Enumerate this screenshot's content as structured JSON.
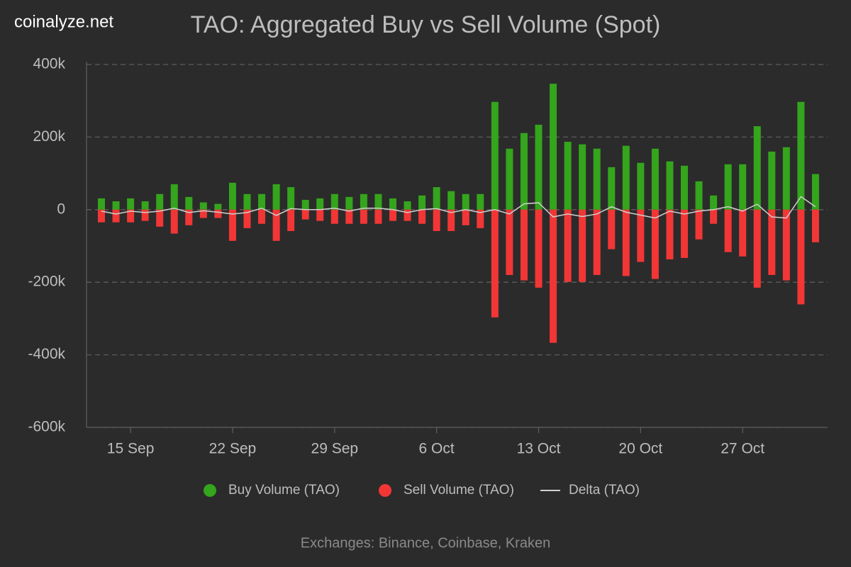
{
  "chart_data": {
    "type": "bar",
    "title": "TAO: Aggregated Buy vs Sell Volume (Spot)",
    "watermark": "coinalyze.net",
    "footer": "Exchanges: Binance, Coinbase, Kraken",
    "categories": [
      null,
      null,
      "15 Sep",
      null,
      null,
      null,
      null,
      null,
      null,
      "22 Sep",
      null,
      null,
      null,
      null,
      null,
      null,
      "29 Sep",
      null,
      null,
      null,
      null,
      null,
      null,
      "6 Oct",
      null,
      null,
      null,
      null,
      null,
      null,
      "13 Oct",
      null,
      null,
      null,
      null,
      null,
      null,
      "20 Oct",
      null,
      null,
      null,
      null,
      null,
      null,
      "27 Oct",
      null,
      null,
      null,
      null,
      null
    ],
    "series": [
      {
        "name": "Buy Volume (TAO)",
        "color": "#34a51c",
        "kind": "bar",
        "values": [
          31000,
          23000,
          31000,
          23000,
          43000,
          70000,
          35000,
          20000,
          16000,
          74000,
          43000,
          43000,
          70000,
          62000,
          27000,
          31000,
          43000,
          35000,
          43000,
          43000,
          31000,
          23000,
          39000,
          62000,
          51000,
          43000,
          43000,
          297000,
          168000,
          211000,
          234000,
          347000,
          187000,
          180000,
          168000,
          117000,
          176000,
          129000,
          168000,
          133000,
          121000,
          78000,
          39000,
          125000,
          125000,
          230000,
          160000,
          172000,
          297000,
          98000
        ]
      },
      {
        "name": "Sell Volume (TAO)",
        "color": "#f23636",
        "kind": "bar",
        "values": [
          -35000,
          -35000,
          -35000,
          -31000,
          -47000,
          -66000,
          -43000,
          -23000,
          -23000,
          -86000,
          -51000,
          -39000,
          -86000,
          -59000,
          -27000,
          -31000,
          -39000,
          -39000,
          -39000,
          -39000,
          -31000,
          -31000,
          -39000,
          -59000,
          -59000,
          -43000,
          -51000,
          -297000,
          -180000,
          -195000,
          -215000,
          -367000,
          -199000,
          -199000,
          -180000,
          -109000,
          -183000,
          -144000,
          -191000,
          -137000,
          -133000,
          -82000,
          -39000,
          -117000,
          -129000,
          -215000,
          -180000,
          -195000,
          -261000,
          -90000
        ]
      },
      {
        "name": "Delta (TAO)",
        "color": "#d0d0d0",
        "kind": "line",
        "values": [
          -4000,
          -12000,
          -4000,
          -8000,
          -4000,
          4000,
          -8000,
          -3000,
          -7000,
          -12000,
          -8000,
          4000,
          -16000,
          3000,
          0,
          0,
          4000,
          -4000,
          4000,
          4000,
          0,
          -8000,
          0,
          3000,
          -8000,
          0,
          -8000,
          0,
          -12000,
          16000,
          19000,
          -20000,
          -12000,
          -19000,
          -12000,
          8000,
          -7000,
          -15000,
          -23000,
          -4000,
          -12000,
          -4000,
          0,
          8000,
          -4000,
          15000,
          -20000,
          -23000,
          36000,
          8000
        ]
      }
    ],
    "ylim": [
      -600000,
      400000
    ],
    "yticks": [
      {
        "value": -600000,
        "label": "-600k"
      },
      {
        "value": -400000,
        "label": "-400k"
      },
      {
        "value": -200000,
        "label": "-200k"
      },
      0,
      {
        "value": 200000,
        "label": "200k"
      },
      {
        "value": 400000,
        "label": "400k"
      }
    ],
    "grid": true
  }
}
